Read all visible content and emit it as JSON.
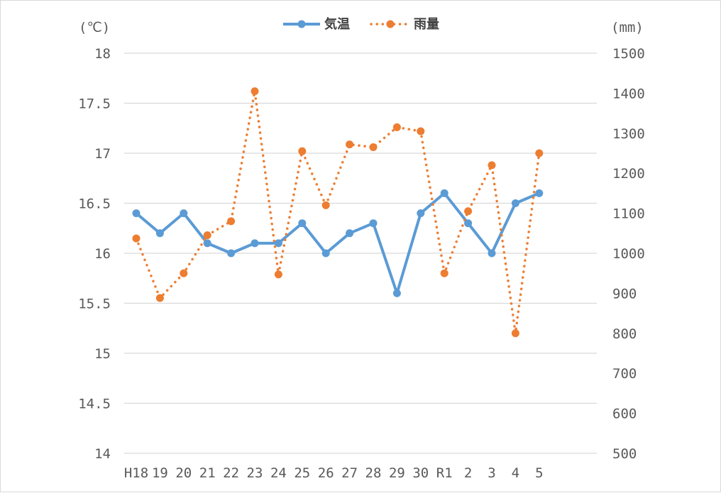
{
  "chart_data": {
    "type": "line",
    "categories": [
      "H18",
      "19",
      "20",
      "21",
      "22",
      "23",
      "24",
      "25",
      "26",
      "27",
      "28",
      "29",
      "30",
      "R1",
      "2",
      "3",
      "4",
      "5"
    ],
    "series": [
      {
        "name": "気温",
        "axis": "left",
        "color": "#5b9bd5",
        "style": "solid",
        "values": [
          16.4,
          16.2,
          16.4,
          16.1,
          16.0,
          16.1,
          16.1,
          16.3,
          16.0,
          16.2,
          16.3,
          15.6,
          16.4,
          16.6,
          16.3,
          16.0,
          16.5,
          16.6
        ]
      },
      {
        "name": "雨量",
        "axis": "right",
        "color": "#ed7d31",
        "style": "dotted",
        "values": [
          1037,
          888,
          950,
          1045,
          1080,
          1405,
          947,
          1255,
          1120,
          1272,
          1265,
          1315,
          1305,
          950,
          1105,
          1220,
          800,
          1250
        ]
      }
    ],
    "y_left": {
      "unit": "(℃)",
      "range": [
        14,
        18
      ],
      "ticks": [
        "14",
        "14.5",
        "15",
        "15.5",
        "16",
        "16.5",
        "17",
        "17.5",
        "18"
      ]
    },
    "y_right": {
      "unit": "(mm)",
      "range": [
        500,
        1500
      ],
      "ticks": [
        "500",
        "600",
        "700",
        "800",
        "900",
        "1000",
        "1100",
        "1200",
        "1300",
        "1400",
        "1500"
      ]
    },
    "grid": true,
    "legend_position": "top-center"
  }
}
